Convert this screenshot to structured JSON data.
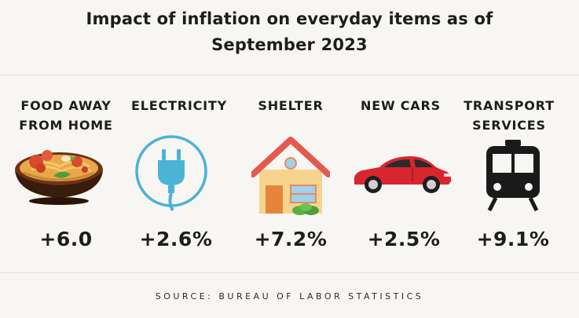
{
  "title_line1": "Impact of inflation on everyday items as of",
  "title_line2": "September 2023",
  "items": [
    {
      "label": "FOOD AWAY\nFROM HOME",
      "value": "+6.0",
      "icon": "food-bowl-icon"
    },
    {
      "label": "ELECTRICITY",
      "value": "+2.6%",
      "icon": "plug-icon"
    },
    {
      "label": "SHELTER",
      "value": "+7.2%",
      "icon": "house-icon"
    },
    {
      "label": "NEW CARS",
      "value": "+2.5%",
      "icon": "car-icon"
    },
    {
      "label": "TRANSPORT\nSERVICES",
      "value": "+9.1%",
      "icon": "train-icon"
    }
  ],
  "source": "SOURCE: BUREAU OF LABOR STATISTICS",
  "colors": {
    "background": "#f8f6f3",
    "plug": "#4ab3d6",
    "roof": "#e35a4f",
    "house_wall": "#f6d48f",
    "car": "#d9262e",
    "train": "#1a1a1a"
  }
}
